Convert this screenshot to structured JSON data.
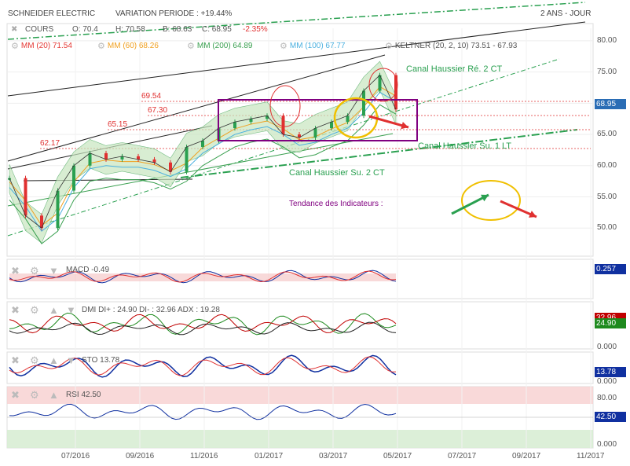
{
  "header": {
    "stock": "SCHNEIDER ELECTRIC",
    "variation": "VARIATION PERIODE : +19.44%",
    "period": "2 ANS - JOUR"
  },
  "quote": {
    "label": "COURS",
    "open": "O: 70.4",
    "high": "H: 70.58",
    "low": "B: 68.63",
    "close": "C: 68.95",
    "change": "-2.35%"
  },
  "legend": [
    {
      "label": "MM (20) 71.54",
      "color": "#e53935"
    },
    {
      "label": "MM (60) 68.26",
      "color": "#f0a020"
    },
    {
      "label": "MM (200) 64.89",
      "color": "#3aa050"
    },
    {
      "label": "MM (100) 67.77",
      "color": "#4ab0e0"
    },
    {
      "label": "KELTNER (20, 2, 10) 73.51 - 67.93",
      "color": "#3aa050"
    }
  ],
  "annotations": {
    "canal_re": "Canal Haussier Ré. 2 CT",
    "canal_su_lt": "Canal Haussier Su. 1 LT",
    "canal_su_ct": "Canal Haussier Su. 2 CT",
    "tendance": "Tendance des Indicateurs :",
    "level_6954": "69.54",
    "level_6730": "67.30",
    "level_6515": "65.15",
    "level_6217": "62.17"
  },
  "price_tag": "68.95",
  "panels": {
    "macd": {
      "title": "MACD -0.49",
      "value": "0.257"
    },
    "dmi": {
      "title": "DMI DI+ : 24.90 DI- : 32.96 ADX : 19.28",
      "value_red": "32.96",
      "value_green": "24.90",
      "zero": "0.000"
    },
    "sto": {
      "title": "STO 13.78",
      "value": "13.78",
      "zero": "0.000"
    },
    "rsi": {
      "title": "RSI 42.50",
      "value": "42.50",
      "t80": "80.00",
      "t0": "0.000"
    }
  },
  "colors": {
    "price_tag": "#2a6db5",
    "macd_tag": "#1030a0",
    "dmi_red": "#c00000",
    "dmi_green": "#1e8a1e",
    "purple": "#800080",
    "red": "#e03030",
    "green": "#2aa050"
  },
  "chart_data": {
    "type": "line",
    "title": "SCHNEIDER ELECTRIC",
    "y_ticks": [
      "80.00",
      "75.00",
      "70.00",
      "65.00",
      "60.00",
      "55.00",
      "50.00"
    ],
    "ylim": [
      46,
      82
    ],
    "x_ticks": [
      "07/2016",
      "09/2016",
      "11/2016",
      "01/2017",
      "03/2017",
      "05/2017",
      "07/2017",
      "09/2017",
      "11/2017"
    ],
    "series": [
      {
        "name": "COURS",
        "x": [
          "2016-05",
          "2016-06",
          "2016-06-15",
          "2016-07",
          "2016-07-15",
          "2016-08",
          "2016-08-15",
          "2016-09",
          "2016-09-15",
          "2016-10",
          "2016-10-15",
          "2016-11",
          "2016-11-15",
          "2016-12",
          "2016-12-15",
          "2017-01",
          "2017-01-15",
          "2017-02",
          "2017-02-15",
          "2017-03",
          "2017-03-15",
          "2017-04",
          "2017-04-15",
          "2017-04-25",
          "2017-05"
        ],
        "values": [
          58,
          52,
          50,
          56,
          60,
          62,
          61,
          61.5,
          61,
          60.5,
          59,
          63,
          64,
          66,
          67,
          67.5,
          68,
          65,
          64.5,
          66,
          67,
          68,
          72,
          74.5,
          69
        ]
      }
    ]
  }
}
